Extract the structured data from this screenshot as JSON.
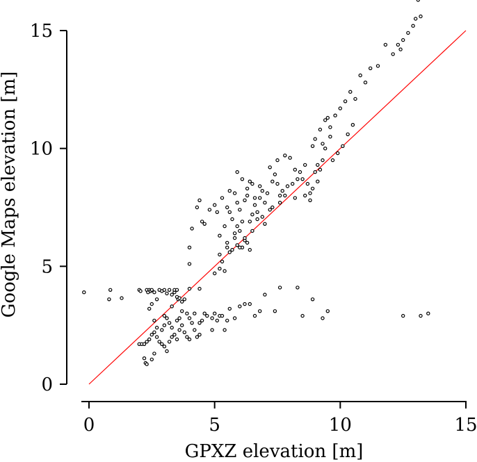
{
  "chart_data": {
    "type": "scatter",
    "title": "",
    "xlabel": "GPXZ elevation [m]",
    "ylabel": "Google Maps elevation [m]",
    "xlim": [
      -0.3,
      15
    ],
    "ylim": [
      -0.8,
      16.3
    ],
    "x_ticks": [
      0,
      5,
      10,
      15
    ],
    "y_ticks": [
      0,
      5,
      10,
      15
    ],
    "x_tick_labels": [
      "0",
      "5",
      "10",
      "15"
    ],
    "y_tick_labels": [
      "0",
      "5",
      "10",
      "15"
    ],
    "grid": false,
    "reference_line": {
      "x": [
        0,
        15
      ],
      "y": [
        0,
        15
      ],
      "color": "#ff0000"
    },
    "marker": {
      "shape": "circle",
      "fill": "#ffffff",
      "edge": "#000000"
    },
    "series": [
      {
        "points": [
          [
            -0.2,
            3.9
          ],
          [
            0.8,
            3.6
          ],
          [
            0.85,
            4.0
          ],
          [
            1.3,
            3.65
          ],
          [
            2.0,
            4.0
          ],
          [
            2.05,
            3.95
          ],
          [
            2.3,
            4.0
          ],
          [
            2.35,
            3.9
          ],
          [
            2.4,
            4.0
          ],
          [
            2.45,
            3.95
          ],
          [
            2.5,
            4.0
          ],
          [
            2.6,
            3.9
          ],
          [
            2.8,
            4.0
          ],
          [
            2.9,
            3.95
          ],
          [
            3.0,
            4.0
          ],
          [
            3.1,
            3.85
          ],
          [
            3.2,
            4.0
          ],
          [
            3.3,
            3.8
          ],
          [
            3.4,
            3.9
          ],
          [
            3.5,
            3.7
          ],
          [
            3.55,
            3.6
          ],
          [
            3.6,
            3.65
          ],
          [
            3.7,
            3.5
          ],
          [
            3.8,
            3.6
          ],
          [
            3.4,
            4.0
          ],
          [
            3.5,
            4.0
          ],
          [
            4.0,
            4.05
          ],
          [
            4.4,
            4.05
          ],
          [
            2.7,
            3.6
          ],
          [
            2.5,
            3.4
          ],
          [
            2.4,
            3.2
          ],
          [
            3.3,
            3.3
          ],
          [
            3.7,
            3.1
          ],
          [
            3.9,
            3.0
          ],
          [
            2.0,
            1.7
          ],
          [
            2.1,
            1.7
          ],
          [
            2.2,
            1.7
          ],
          [
            2.3,
            1.8
          ],
          [
            2.4,
            1.9
          ],
          [
            2.5,
            2.1
          ],
          [
            2.6,
            2.2
          ],
          [
            2.7,
            2.0
          ],
          [
            2.8,
            1.8
          ],
          [
            2.9,
            1.7
          ],
          [
            3.0,
            1.6
          ],
          [
            3.1,
            1.4
          ],
          [
            3.2,
            1.8
          ],
          [
            3.3,
            2.0
          ],
          [
            3.4,
            2.1
          ],
          [
            3.5,
            1.9
          ],
          [
            3.6,
            2.3
          ],
          [
            3.7,
            2.5
          ],
          [
            3.8,
            2.2
          ],
          [
            3.9,
            2.0
          ],
          [
            4.0,
            1.9
          ],
          [
            4.1,
            2.6
          ],
          [
            4.2,
            2.3
          ],
          [
            4.3,
            2.0
          ],
          [
            4.4,
            2.1
          ],
          [
            4.5,
            2.7
          ],
          [
            4.6,
            3.0
          ],
          [
            4.7,
            2.9
          ],
          [
            2.2,
            1.1
          ],
          [
            2.25,
            0.9
          ],
          [
            2.3,
            0.85
          ],
          [
            2.5,
            1.05
          ],
          [
            2.6,
            1.3
          ],
          [
            2.9,
            2.3
          ],
          [
            3.0,
            2.5
          ],
          [
            3.1,
            2.8
          ],
          [
            3.2,
            2.6
          ],
          [
            3.3,
            2.4
          ],
          [
            3.0,
            2.9
          ],
          [
            2.6,
            2.7
          ],
          [
            2.7,
            2.4
          ],
          [
            3.5,
            2.7
          ],
          [
            3.6,
            2.8
          ],
          [
            4.0,
            2.8
          ],
          [
            4.2,
            3.0
          ],
          [
            4.4,
            2.6
          ],
          [
            4.9,
            2.8
          ],
          [
            5.0,
            3.0
          ],
          [
            5.1,
            2.7
          ],
          [
            5.2,
            2.9
          ],
          [
            5.4,
            2.3
          ],
          [
            5.5,
            2.7
          ],
          [
            5.6,
            3.2
          ],
          [
            5.8,
            2.8
          ],
          [
            6.0,
            3.3
          ],
          [
            6.2,
            3.4
          ],
          [
            6.4,
            3.4
          ],
          [
            6.6,
            2.9
          ],
          [
            6.8,
            3.1
          ],
          [
            7.0,
            3.8
          ],
          [
            7.4,
            3.1
          ],
          [
            7.6,
            4.1
          ],
          [
            8.3,
            4.1
          ],
          [
            8.5,
            2.9
          ],
          [
            8.9,
            3.6
          ],
          [
            9.3,
            2.8
          ],
          [
            9.5,
            3.1
          ],
          [
            12.5,
            2.9
          ],
          [
            13.2,
            2.9
          ],
          [
            13.5,
            3.0
          ],
          [
            4.9,
            2.3
          ],
          [
            5.3,
            2.9
          ],
          [
            4.0,
            5.1
          ],
          [
            4.0,
            5.8
          ],
          [
            4.1,
            6.6
          ],
          [
            4.3,
            7.5
          ],
          [
            4.4,
            7.8
          ],
          [
            4.5,
            6.9
          ],
          [
            4.6,
            6.8
          ],
          [
            4.8,
            7.4
          ],
          [
            5.0,
            7.6
          ],
          [
            5.1,
            7.3
          ],
          [
            5.2,
            6.3
          ],
          [
            5.5,
            6.0
          ],
          [
            5.5,
            7.5
          ],
          [
            5.6,
            8.2
          ],
          [
            5.7,
            7.0
          ],
          [
            5.8,
            6.4
          ],
          [
            5.9,
            6.7
          ],
          [
            5.9,
            9.0
          ],
          [
            6.0,
            6.5
          ],
          [
            6.0,
            7.4
          ],
          [
            6.1,
            8.7
          ],
          [
            6.2,
            6.1
          ],
          [
            6.3,
            8.0
          ],
          [
            6.4,
            8.6
          ],
          [
            6.5,
            8.5
          ],
          [
            6.6,
            7.6
          ],
          [
            6.7,
            7.3
          ],
          [
            6.8,
            8.4
          ],
          [
            6.9,
            8.2
          ],
          [
            7.0,
            7.7
          ],
          [
            7.1,
            8.1
          ],
          [
            7.2,
            9.2
          ],
          [
            7.3,
            8.6
          ],
          [
            7.4,
            8.9
          ],
          [
            7.5,
            9.5
          ],
          [
            7.6,
            8.0
          ],
          [
            7.7,
            8.2
          ],
          [
            7.8,
            9.7
          ],
          [
            8.0,
            9.6
          ],
          [
            8.2,
            9.1
          ],
          [
            8.4,
            9.0
          ],
          [
            8.5,
            8.7
          ],
          [
            8.6,
            9.3
          ],
          [
            8.8,
            8.1
          ],
          [
            8.9,
            10.1
          ],
          [
            9.0,
            10.4
          ],
          [
            9.1,
            9.3
          ],
          [
            9.2,
            10.8
          ],
          [
            9.3,
            10.2
          ],
          [
            9.4,
            11.2
          ],
          [
            9.5,
            11.3
          ],
          [
            9.6,
            10.9
          ],
          [
            9.8,
            11.4
          ],
          [
            10.0,
            11.7
          ],
          [
            10.2,
            12.0
          ],
          [
            10.4,
            12.4
          ],
          [
            10.6,
            12.1
          ],
          [
            10.8,
            13.1
          ],
          [
            11.0,
            12.8
          ],
          [
            11.2,
            13.4
          ],
          [
            11.5,
            13.5
          ],
          [
            11.8,
            14.4
          ],
          [
            12.1,
            14.0
          ],
          [
            12.3,
            14.4
          ],
          [
            12.5,
            14.6
          ],
          [
            12.7,
            14.9
          ],
          [
            12.9,
            15.2
          ],
          [
            13.0,
            15.5
          ],
          [
            13.1,
            16.3
          ],
          [
            13.2,
            15.6
          ],
          [
            12.4,
            14.2
          ],
          [
            10.1,
            10.1
          ],
          [
            10.3,
            10.6
          ],
          [
            10.5,
            11.0
          ],
          [
            9.7,
            9.5
          ],
          [
            9.9,
            9.8
          ],
          [
            8.7,
            8.5
          ],
          [
            8.3,
            8.7
          ],
          [
            7.9,
            8.4
          ],
          [
            7.3,
            7.5
          ],
          [
            7.0,
            6.8
          ],
          [
            6.5,
            6.5
          ],
          [
            6.3,
            6.0
          ],
          [
            6.1,
            5.8
          ],
          [
            5.7,
            5.7
          ],
          [
            5.3,
            5.2
          ],
          [
            5.2,
            4.9
          ],
          [
            5.0,
            4.7
          ],
          [
            5.4,
            4.8
          ],
          [
            5.9,
            5.9
          ],
          [
            6.2,
            6.2
          ],
          [
            6.4,
            6.9
          ],
          [
            6.7,
            7.0
          ],
          [
            6.9,
            7.1
          ],
          [
            6.5,
            7.2
          ],
          [
            6.6,
            7.9
          ],
          [
            6.3,
            8.3
          ],
          [
            6.2,
            7.8
          ],
          [
            5.9,
            7.7
          ],
          [
            5.8,
            8.1
          ],
          [
            5.6,
            7.3
          ],
          [
            5.4,
            6.7
          ],
          [
            5.3,
            7.9
          ],
          [
            5.6,
            5.6
          ],
          [
            6.0,
            5.8
          ],
          [
            6.4,
            5.7
          ],
          [
            7.5,
            8.5
          ],
          [
            7.8,
            8.0
          ],
          [
            8.1,
            8.5
          ],
          [
            8.6,
            8.0
          ],
          [
            8.9,
            8.3
          ],
          [
            9.2,
            9.1
          ],
          [
            9.0,
            9.0
          ],
          [
            9.3,
            9.5
          ],
          [
            9.6,
            10.5
          ],
          [
            9.4,
            10.0
          ],
          [
            9.1,
            8.6
          ],
          [
            8.8,
            7.8
          ],
          [
            8.2,
            7.9
          ],
          [
            7.6,
            7.7
          ],
          [
            7.2,
            7.4
          ],
          [
            6.8,
            7.9
          ],
          [
            6.1,
            6.9
          ],
          [
            5.8,
            6.2
          ],
          [
            5.5,
            5.8
          ],
          [
            5.2,
            5.5
          ]
        ]
      }
    ]
  }
}
